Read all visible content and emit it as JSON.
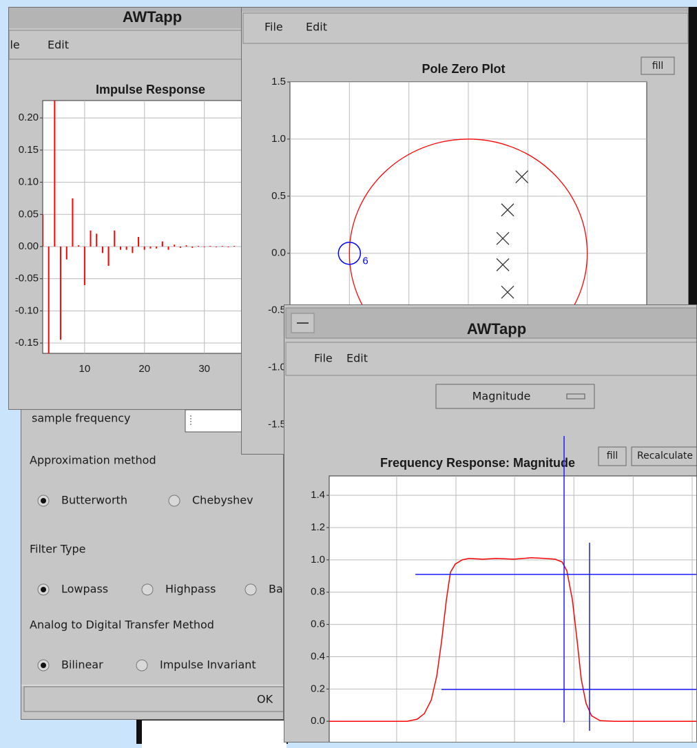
{
  "dialog": {
    "sample_frequency_label": "sample frequency",
    "approximation_label": "Approximation method",
    "approximation_options": [
      "Butterworth",
      "Chebyshev"
    ],
    "approximation_selected": 0,
    "filter_type_label": "Filter Type",
    "filter_type_options": [
      "Lowpass",
      "Highpass",
      "Bandpass"
    ],
    "filter_type_selected": 0,
    "transfer_label": "Analog to Digital Transfer Method",
    "transfer_options": [
      "Bilinear",
      "Impulse Invariant"
    ],
    "transfer_selected": 0,
    "ok_button": "OK"
  },
  "impulse_window": {
    "title": "AWTapp",
    "menu": [
      "File",
      "Edit"
    ],
    "plot": {
      "title": "Impulse Response",
      "color": "#ff0000",
      "xlim": [
        3,
        42
      ],
      "ylim": [
        -0.166,
        0.227
      ],
      "xticks": [
        10,
        20,
        30
      ],
      "yticks": [
        {
          "value": 0.2,
          "label": "0.20"
        },
        {
          "value": 0.15,
          "label": "0.15"
        },
        {
          "value": 0.1,
          "label": "0.10"
        },
        {
          "value": 0.05,
          "label": "0.05"
        },
        {
          "value": 0,
          "label": "0.00"
        },
        {
          "value": -0.05,
          "label": "-0.05"
        },
        {
          "value": -0.1,
          "label": "-0.10"
        },
        {
          "value": -0.15,
          "label": "-0.15"
        }
      ],
      "x": [
        3,
        4,
        5,
        6,
        7,
        8,
        9,
        10,
        11,
        12,
        13,
        14,
        15,
        16,
        17,
        18,
        19,
        20,
        21,
        22,
        23,
        24,
        25,
        26,
        27,
        28,
        29,
        30,
        31,
        32,
        33,
        34,
        35,
        36
      ],
      "values": [
        0.05,
        -0.17,
        0.23,
        -0.145,
        -0.02,
        0.075,
        0.002,
        -0.06,
        0.025,
        0.02,
        -0.01,
        -0.03,
        0.025,
        -0.005,
        -0.005,
        -0.01,
        0.015,
        -0.005,
        -0.003,
        -0.003,
        0.008,
        -0.005,
        0.003,
        -0.002,
        0.002,
        -0.002,
        0.001,
        -0.001,
        0.001,
        -0.001,
        0.001,
        -0.001,
        0.001,
        0
      ]
    }
  },
  "pole_zero_window": {
    "menu": [
      "File",
      "Edit"
    ],
    "fill_button": "fill",
    "plot": {
      "title": "Pole Zero Plot",
      "circle_color": "#ff0000",
      "pole_color": "#333333",
      "zero_color": "#0000ff",
      "xlim": [
        -1.5,
        1.5
      ],
      "ylim": [
        -1.75,
        1.5
      ],
      "xgrid": [
        -1,
        -0.5,
        0,
        0.5,
        1
      ],
      "yticks": [
        1.5,
        {
          "value": 1,
          "label": "1.0"
        },
        0.5,
        {
          "value": 0,
          "label": "0.0"
        },
        -0.5,
        {
          "value": -1,
          "label": "-1.0"
        },
        -1.5
      ],
      "poles": {
        "x": [
          0.45,
          0.33,
          0.29,
          0.29,
          0.33
        ],
        "y": [
          0.67,
          0.38,
          0.13,
          -0.1,
          -0.34
        ]
      },
      "zeros": {
        "x": [
          -1
        ],
        "y": [
          0
        ],
        "multiplicity": [
          "6"
        ]
      }
    }
  },
  "frequency_window": {
    "title": "AWTapp",
    "menu": [
      "File",
      "Edit"
    ],
    "dropdown": "Magnitude",
    "fill_button": "fill",
    "recalc_button": "Recalculate",
    "plot": {
      "title": "Frequency Response: Magnitude",
      "color": "#ff0000",
      "xlim": [
        0,
        1
      ],
      "ylim": [
        -0.14,
        1.52
      ],
      "xgrid": [
        0.183,
        0.344,
        0.503,
        0.664,
        0.825,
        0.985
      ],
      "yticks": [
        1.4,
        1.2,
        {
          "value": 1,
          "label": "1.0"
        },
        0.8,
        0.6,
        0.4,
        0.2,
        {
          "value": 0,
          "label": "0.0"
        }
      ],
      "x": [
        0,
        0.211,
        0.239,
        0.258,
        0.277,
        0.292,
        0.305,
        0.318,
        0.329,
        0.342,
        0.361,
        0.379,
        0.417,
        0.454,
        0.501,
        0.548,
        0.585,
        0.613,
        0.632,
        0.645,
        0.66,
        0.673,
        0.684,
        0.697,
        0.712,
        0.735,
        0.772,
        1
      ],
      "values": [
        0,
        0,
        0.013,
        0.047,
        0.132,
        0.282,
        0.496,
        0.752,
        0.923,
        0.974,
        1.0,
        1.009,
        1.004,
        1.009,
        1.004,
        1.013,
        1.009,
        1.004,
        0.987,
        0.932,
        0.752,
        0.496,
        0.261,
        0.111,
        0.034,
        0.004,
        0,
        0
      ]
    }
  }
}
